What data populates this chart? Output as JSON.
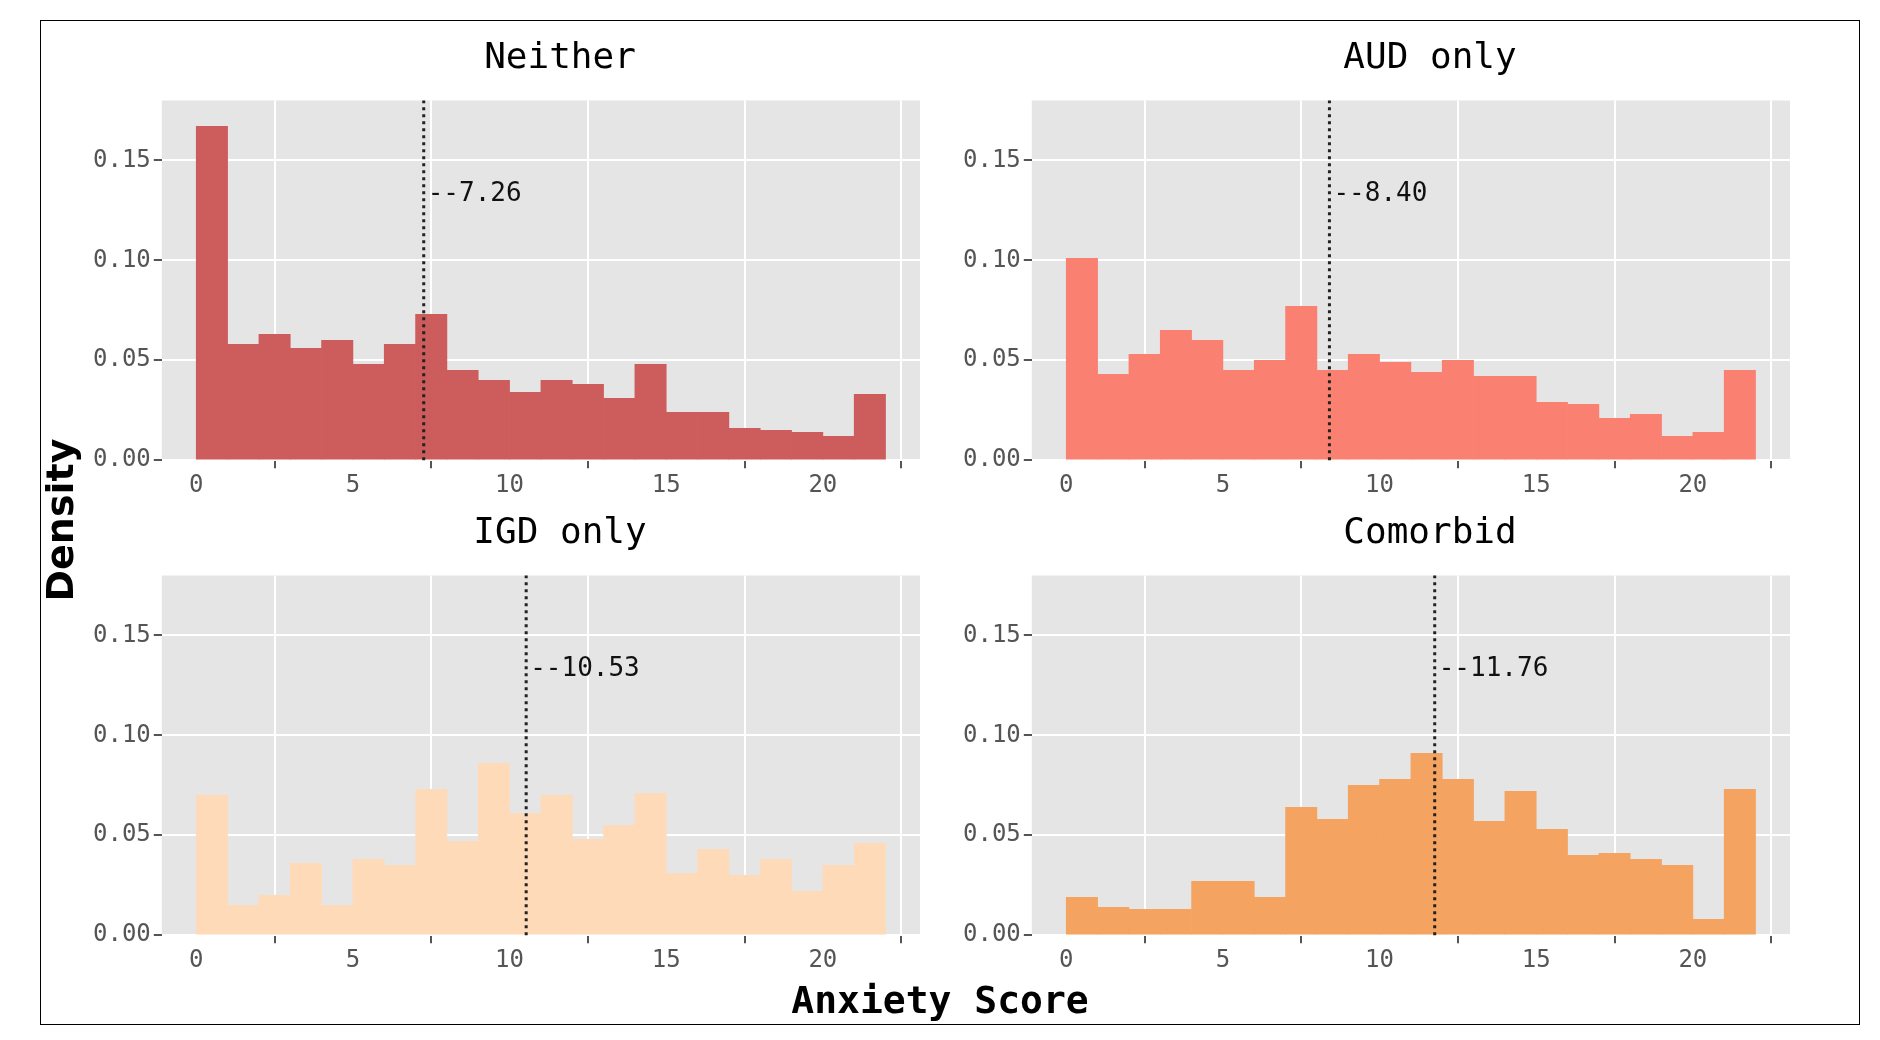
{
  "chart_data": [
    {
      "type": "histogram",
      "title": "Neither",
      "ylabel": "Density",
      "color": "#cd5c5c",
      "bins": [
        0,
        1,
        2,
        3,
        4,
        5,
        6,
        7,
        8,
        9,
        10,
        11,
        12,
        13,
        14,
        15,
        16,
        17,
        18,
        19,
        20,
        21,
        22
      ],
      "values": [
        0.167,
        0.058,
        0.063,
        0.056,
        0.06,
        0.048,
        0.058,
        0.073,
        0.045,
        0.04,
        0.034,
        0.04,
        0.038,
        0.031,
        0.048,
        0.024,
        0.024,
        0.016,
        0.015,
        0.014,
        0.012,
        0.033
      ],
      "xlim": [
        -1.1,
        23.1
      ],
      "xticks": [
        0,
        5,
        10,
        15,
        20
      ],
      "ylim": [
        0,
        0.18
      ],
      "yticks": [
        {
          "value": 0,
          "label": "0.00"
        },
        {
          "value": 0.05,
          "label": "0.05"
        },
        {
          "value": 0.1,
          "label": "0.10"
        },
        {
          "value": 0.15,
          "label": "0.15"
        }
      ],
      "grid": true,
      "ref_lines": [
        {
          "axis": "x",
          "value": 7.26,
          "line_style": "dotted",
          "color": "#222222"
        }
      ],
      "annotations": [
        {
          "text": "--7.26",
          "x": 7.26,
          "y": 0.133
        }
      ]
    },
    {
      "type": "histogram",
      "title": "AUD only",
      "color": "#fa8072",
      "bins": [
        0,
        1,
        2,
        3,
        4,
        5,
        6,
        7,
        8,
        9,
        10,
        11,
        12,
        13,
        14,
        15,
        16,
        17,
        18,
        19,
        20,
        21,
        22
      ],
      "values": [
        0.101,
        0.043,
        0.053,
        0.065,
        0.06,
        0.045,
        0.05,
        0.077,
        0.045,
        0.053,
        0.049,
        0.044,
        0.05,
        0.042,
        0.042,
        0.029,
        0.028,
        0.021,
        0.023,
        0.012,
        0.014,
        0.045
      ],
      "xlim": [
        -1.1,
        23.1
      ],
      "xticks": [
        0,
        5,
        10,
        15,
        20
      ],
      "ylim": [
        0,
        0.18
      ],
      "yticks": [
        {
          "value": 0,
          "label": "0.00"
        },
        {
          "value": 0.05,
          "label": "0.05"
        },
        {
          "value": 0.1,
          "label": "0.10"
        },
        {
          "value": 0.15,
          "label": "0.15"
        }
      ],
      "grid": true,
      "ref_lines": [
        {
          "axis": "x",
          "value": 8.4,
          "line_style": "dotted",
          "color": "#222222"
        }
      ],
      "annotations": [
        {
          "text": "--8.40",
          "x": 8.4,
          "y": 0.133
        }
      ]
    },
    {
      "type": "histogram",
      "title": "IGD only",
      "xlabel": "Anxiety Score",
      "color": "#ffdab9",
      "bins": [
        0,
        1,
        2,
        3,
        4,
        5,
        6,
        7,
        8,
        9,
        10,
        11,
        12,
        13,
        14,
        15,
        16,
        17,
        18,
        19,
        20,
        21,
        22
      ],
      "values": [
        0.07,
        0.015,
        0.02,
        0.036,
        0.015,
        0.038,
        0.035,
        0.073,
        0.047,
        0.086,
        0.061,
        0.07,
        0.048,
        0.055,
        0.071,
        0.031,
        0.043,
        0.03,
        0.038,
        0.022,
        0.035,
        0.046
      ],
      "xlim": [
        -1.1,
        23.1
      ],
      "xticks": [
        0,
        5,
        10,
        15,
        20
      ],
      "ylim": [
        0,
        0.18
      ],
      "yticks": [
        {
          "value": 0,
          "label": "0.00"
        },
        {
          "value": 0.05,
          "label": "0.05"
        },
        {
          "value": 0.1,
          "label": "0.10"
        },
        {
          "value": 0.15,
          "label": "0.15"
        }
      ],
      "grid": true,
      "ref_lines": [
        {
          "axis": "x",
          "value": 10.53,
          "line_style": "dotted",
          "color": "#222222"
        }
      ],
      "annotations": [
        {
          "text": "--10.53",
          "x": 10.53,
          "y": 0.133
        }
      ]
    },
    {
      "type": "histogram",
      "title": "Comorbid",
      "color": "#f4a460",
      "bins": [
        0,
        1,
        2,
        3,
        4,
        5,
        6,
        7,
        8,
        9,
        10,
        11,
        12,
        13,
        14,
        15,
        16,
        17,
        18,
        19,
        20,
        21,
        22
      ],
      "values": [
        0.019,
        0.014,
        0.013,
        0.013,
        0.027,
        0.027,
        0.019,
        0.064,
        0.058,
        0.075,
        0.078,
        0.091,
        0.078,
        0.057,
        0.072,
        0.053,
        0.04,
        0.041,
        0.038,
        0.035,
        0.008,
        0.073
      ],
      "xlim": [
        -1.1,
        23.1
      ],
      "xticks": [
        0,
        5,
        10,
        15,
        20
      ],
      "ylim": [
        0,
        0.18
      ],
      "yticks": [
        {
          "value": 0,
          "label": "0.00"
        },
        {
          "value": 0.05,
          "label": "0.05"
        },
        {
          "value": 0.1,
          "label": "0.10"
        },
        {
          "value": 0.15,
          "label": "0.15"
        }
      ],
      "grid": true,
      "ref_lines": [
        {
          "axis": "x",
          "value": 11.76,
          "line_style": "dotted",
          "color": "#222222"
        }
      ],
      "annotations": [
        {
          "text": "--11.76",
          "x": 11.76,
          "y": 0.133
        }
      ]
    }
  ]
}
